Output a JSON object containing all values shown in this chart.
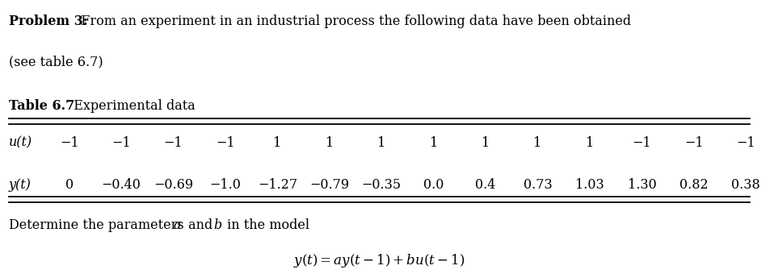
{
  "problem_text_bold": "Problem 3:",
  "problem_text_normal": "  From an experiment in an industrial process the following data have been obtained",
  "problem_text_line2": "(see table 6.7)",
  "table_title_bold": "Table 6.7",
  "table_title_normal": "  Experimental data",
  "u_label": "u(t)",
  "u_values": [
    "−1",
    "−1",
    "−1",
    "−1",
    "1",
    "1",
    "1",
    "1",
    "1",
    "1",
    "1",
    "−1",
    "−1",
    "−1"
  ],
  "y_label": "y(t)",
  "y_values": [
    "0",
    "−0.40",
    "−0.69",
    "−1.0",
    "−1.27",
    "−0.79",
    "−0.35",
    "0.0",
    "0.4",
    "0.73",
    "1.03",
    "1.30",
    "0.82",
    "0.38"
  ],
  "bg_color": "#ffffff",
  "text_color": "#000000",
  "font_size_main": 11.5
}
